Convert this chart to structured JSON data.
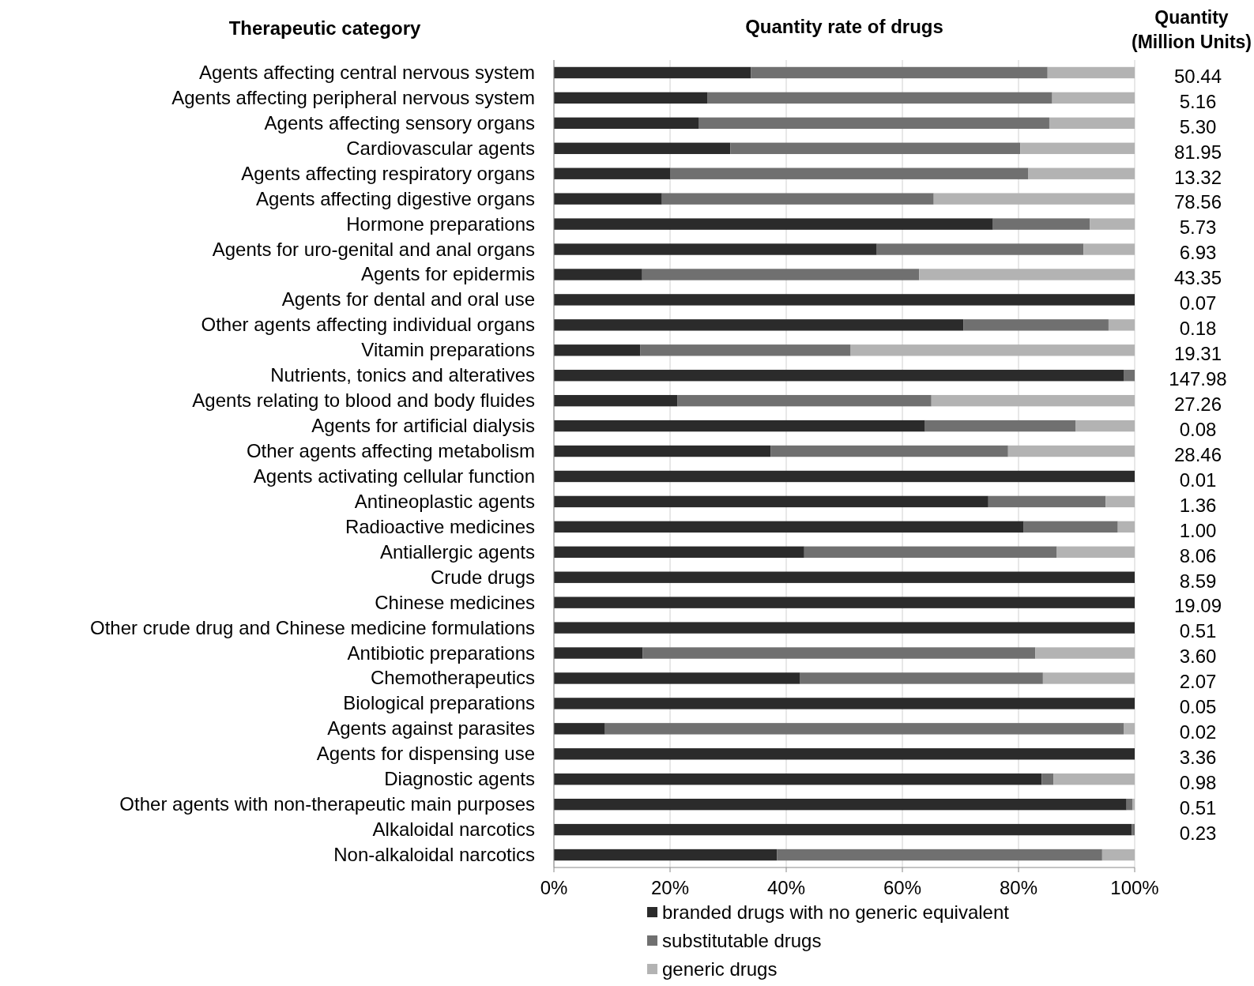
{
  "chart_data": {
    "type": "bar",
    "orientation": "horizontal",
    "stacked": true,
    "title": "Quantity rate of drugs",
    "ylabel": "Therapeutic category",
    "categories": [
      "Agents affecting central nervous system",
      "Agents affecting peripheral nervous system",
      "Agents affecting sensory organs",
      "Cardiovascular agents",
      "Agents affecting respiratory organs",
      "Agents affecting digestive organs",
      "Hormone preparations",
      "Agents for uro-genital and anal organs",
      "Agents for epidermis",
      "Agents for dental and oral use",
      "Other agents affecting individual organs",
      "Vitamin preparations",
      "Nutrients, tonics and alteratives",
      "Agents relating to blood and body fluides",
      "Agents for artificial dialysis",
      "Other agents affecting metabolism",
      "Agents activating cellular function",
      "Antineoplastic agents",
      "Radioactive medicines",
      "Antiallergic agents",
      "Crude drugs",
      "Chinese medicines",
      "Other crude drug and Chinese medicine formulations",
      "Antibiotic preparations",
      "Chemotherapeutics",
      "Biological preparations",
      "Agents against parasites",
      "Agents for dispensing use",
      "Diagnostic agents",
      "Other agents with non-therapeutic main purposes",
      "Alkaloidal narcotics",
      "Non-alkaloidal narcotics"
    ],
    "series": [
      {
        "name": "branded drugs with no generic equivalent",
        "color": "#2b2b2b",
        "values": [
          33.9,
          26.4,
          24.9,
          30.4,
          20.0,
          18.6,
          75.6,
          55.6,
          15.2,
          100,
          70.5,
          14.9,
          98.1,
          21.3,
          63.9,
          37.3,
          100,
          74.8,
          80.9,
          43.1,
          100,
          100,
          100,
          15.3,
          42.4,
          100,
          8.8,
          100,
          84.0,
          98.6,
          99.5,
          38.4
        ]
      },
      {
        "name": "substitutable drugs",
        "color": "#707070",
        "values": [
          51.1,
          59.4,
          60.4,
          49.9,
          61.7,
          46.8,
          16.7,
          35.6,
          47.7,
          0,
          25.0,
          36.2,
          1.9,
          43.7,
          25.9,
          40.9,
          0,
          20.2,
          16.2,
          43.5,
          0,
          0,
          0,
          67.6,
          41.8,
          0,
          89.3,
          0,
          2.0,
          1.0,
          0.5,
          56.0
        ]
      },
      {
        "name": "generic drugs",
        "color": "#b3b3b3",
        "values": [
          15.0,
          14.2,
          14.7,
          19.7,
          18.3,
          34.6,
          7.7,
          8.8,
          37.1,
          0,
          4.5,
          48.9,
          0,
          35.0,
          10.2,
          21.8,
          0,
          5.0,
          2.9,
          13.4,
          0,
          0,
          0,
          17.1,
          15.8,
          0,
          1.9,
          0,
          14.0,
          0.4,
          0,
          5.6
        ]
      }
    ],
    "xlim": [
      0,
      100
    ],
    "xticks": [
      {
        "value": 0,
        "label": "0%"
      },
      {
        "value": 20,
        "label": "20%"
      },
      {
        "value": 40,
        "label": "40%"
      },
      {
        "value": 60,
        "label": "60%"
      },
      {
        "value": 80,
        "label": "80%"
      },
      {
        "value": 100,
        "label": "100%"
      }
    ],
    "grid": "x",
    "legend": "bottom",
    "annotations": [
      "Quantity (Million Units)",
      "50.44",
      "5.16",
      "5.30",
      "81.95",
      "13.32",
      "78.56",
      "5.73",
      "6.93",
      "43.35",
      "0.07",
      "0.18",
      "19.31",
      "147.98",
      "27.26",
      "0.08",
      "28.46",
      "0.01",
      "1.36",
      "1.00",
      "8.06",
      "8.59",
      "19.09",
      "0.51",
      "3.60",
      "2.07",
      "0.05",
      "0.02",
      "3.36",
      "0.98",
      "0.51",
      "0.23"
    ]
  }
}
